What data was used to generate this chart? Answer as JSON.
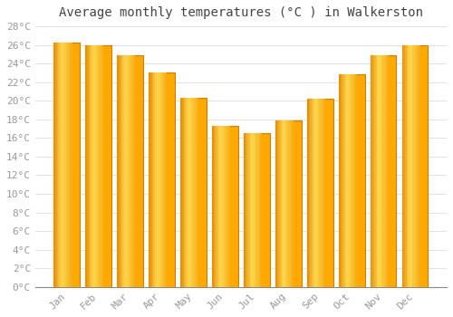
{
  "months": [
    "Jan",
    "Feb",
    "Mar",
    "Apr",
    "May",
    "Jun",
    "Jul",
    "Aug",
    "Sep",
    "Oct",
    "Nov",
    "Dec"
  ],
  "temperatures": [
    26.3,
    26.0,
    24.9,
    23.0,
    20.3,
    17.3,
    16.5,
    17.9,
    20.2,
    22.8,
    24.9,
    26.0
  ],
  "bar_color_dark": "#E8920A",
  "bar_color_mid": "#FFA800",
  "bar_color_light": "#FFD060",
  "bar_edge_color": "#CC8000",
  "title": "Average monthly temperatures (°C ) in Walkerston",
  "ylim": [
    0,
    28
  ],
  "ytick_step": 2,
  "background_color": "#FFFFFF",
  "grid_color": "#DDDDDD",
  "title_fontsize": 10,
  "tick_fontsize": 8,
  "tick_color": "#999999",
  "font_family": "monospace",
  "bar_width": 0.82
}
